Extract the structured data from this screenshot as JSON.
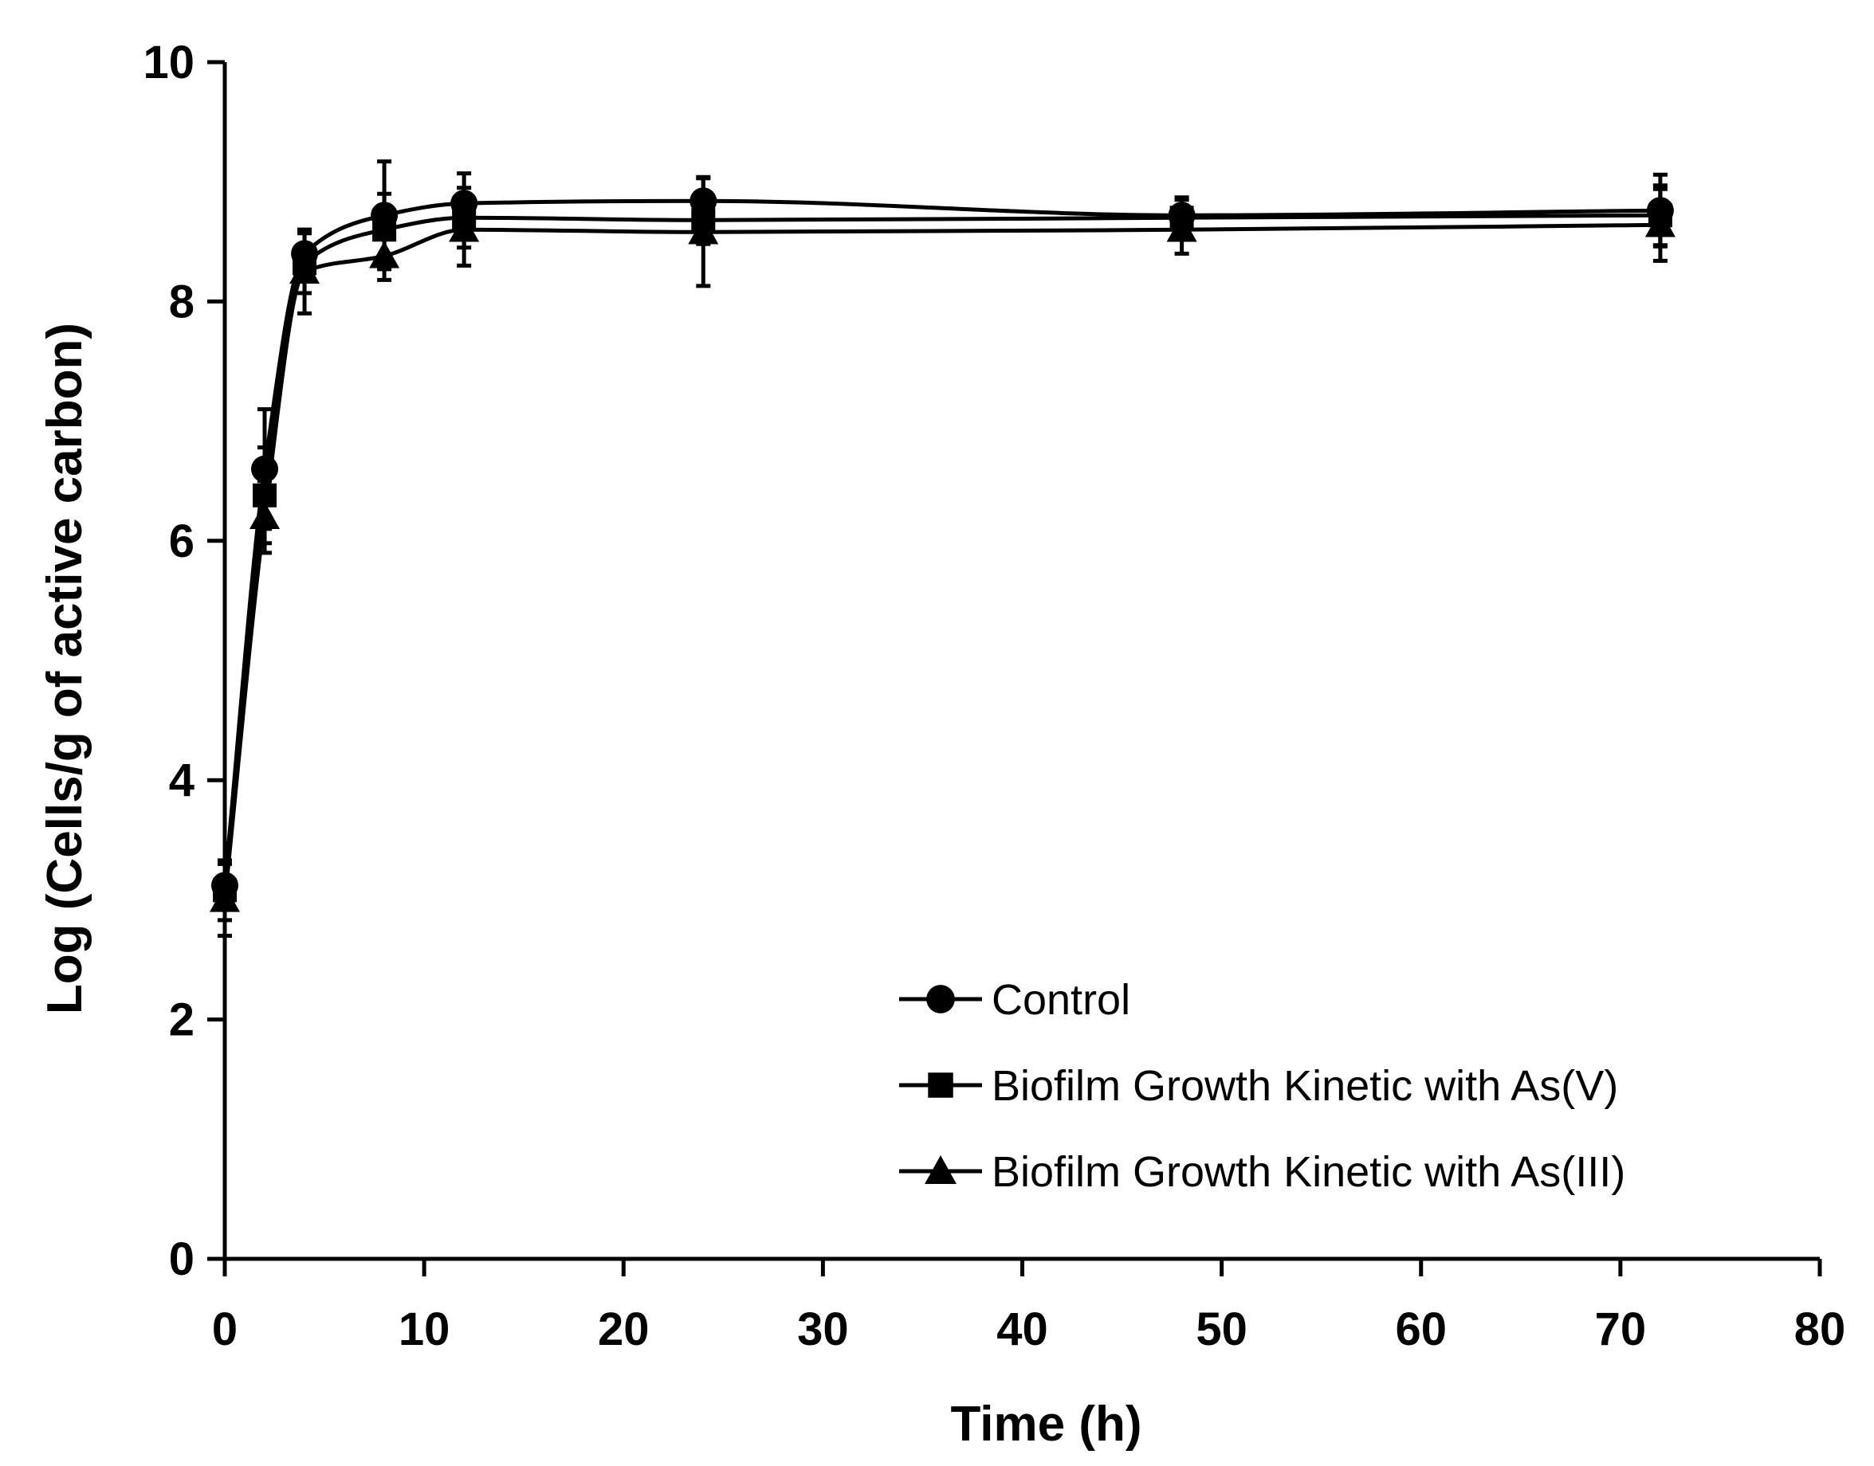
{
  "chart_data": {
    "type": "line",
    "title": "",
    "xlabel": "Time (h)",
    "ylabel": "Log (Cells/g of active carbon)",
    "xlim": [
      0,
      80
    ],
    "ylim": [
      0,
      10
    ],
    "xticks": [
      0,
      10,
      20,
      30,
      40,
      50,
      60,
      70,
      80
    ],
    "yticks": [
      0,
      2,
      4,
      6,
      8,
      10
    ],
    "xtick_labels": [
      "0",
      "10",
      "20",
      "30",
      "40",
      "50",
      "60",
      "70",
      "80"
    ],
    "ytick_labels": [
      "0",
      "2",
      "4",
      "6",
      "8",
      "10"
    ],
    "grid": false,
    "smoothed": true,
    "legend_position": "lower-right",
    "x": [
      0,
      2,
      4,
      8,
      12,
      24,
      48,
      72
    ],
    "series": [
      {
        "name": "Control",
        "marker": "circle",
        "values": [
          3.12,
          6.6,
          8.4,
          8.72,
          8.82,
          8.84,
          8.72,
          8.76
        ],
        "errors": [
          0.2,
          0.5,
          0.2,
          0.45,
          0.25,
          0.2,
          0.15,
          0.3
        ]
      },
      {
        "name": "Biofilm Growth Kinetic with As(V)",
        "marker": "square",
        "values": [
          3.08,
          6.38,
          8.32,
          8.6,
          8.7,
          8.68,
          8.7,
          8.72
        ],
        "errors": [
          0.25,
          0.4,
          0.25,
          0.3,
          0.25,
          0.2,
          0.15,
          0.25
        ]
      },
      {
        "name": "Biofilm Growth Kinetic with As(III)",
        "marker": "triangle",
        "values": [
          3.0,
          6.2,
          8.25,
          8.38,
          8.6,
          8.58,
          8.6,
          8.64
        ],
        "errors": [
          0.3,
          0.3,
          0.35,
          0.2,
          0.3,
          0.45,
          0.2,
          0.3
        ]
      }
    ]
  }
}
